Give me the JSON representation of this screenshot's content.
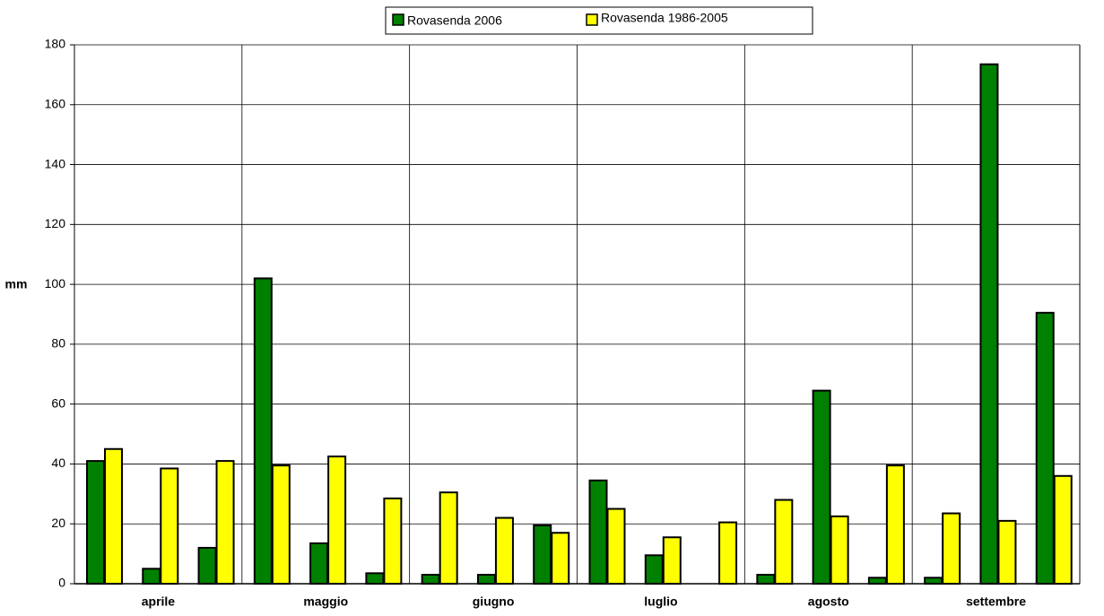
{
  "chart_data": {
    "type": "bar",
    "y_label": "mm",
    "categories": [
      null,
      "aprile",
      null,
      null,
      "maggio",
      null,
      null,
      "giugno",
      null,
      null,
      "luglio",
      null,
      null,
      "agosto",
      null,
      null,
      "settembre",
      null
    ],
    "series": [
      {
        "name": "Rovasenda 2006",
        "color": "#008000",
        "values": [
          41,
          5,
          12,
          102,
          13.5,
          3.5,
          3,
          3,
          19.5,
          34.5,
          9.5,
          0,
          3,
          64.5,
          2,
          2,
          173.5,
          90.5
        ]
      },
      {
        "name": "Rovasenda 1986-2005",
        "color": "#ffff00",
        "values": [
          45,
          38.5,
          41,
          39.5,
          42.5,
          28.5,
          30.5,
          22,
          17,
          25,
          15.5,
          20.5,
          28,
          22.5,
          39.5,
          23.5,
          21,
          36
        ]
      }
    ],
    "ylim": [
      0,
      180
    ],
    "yticks": [
      0,
      20,
      40,
      60,
      80,
      100,
      120,
      140,
      160,
      180
    ],
    "grid": true
  }
}
